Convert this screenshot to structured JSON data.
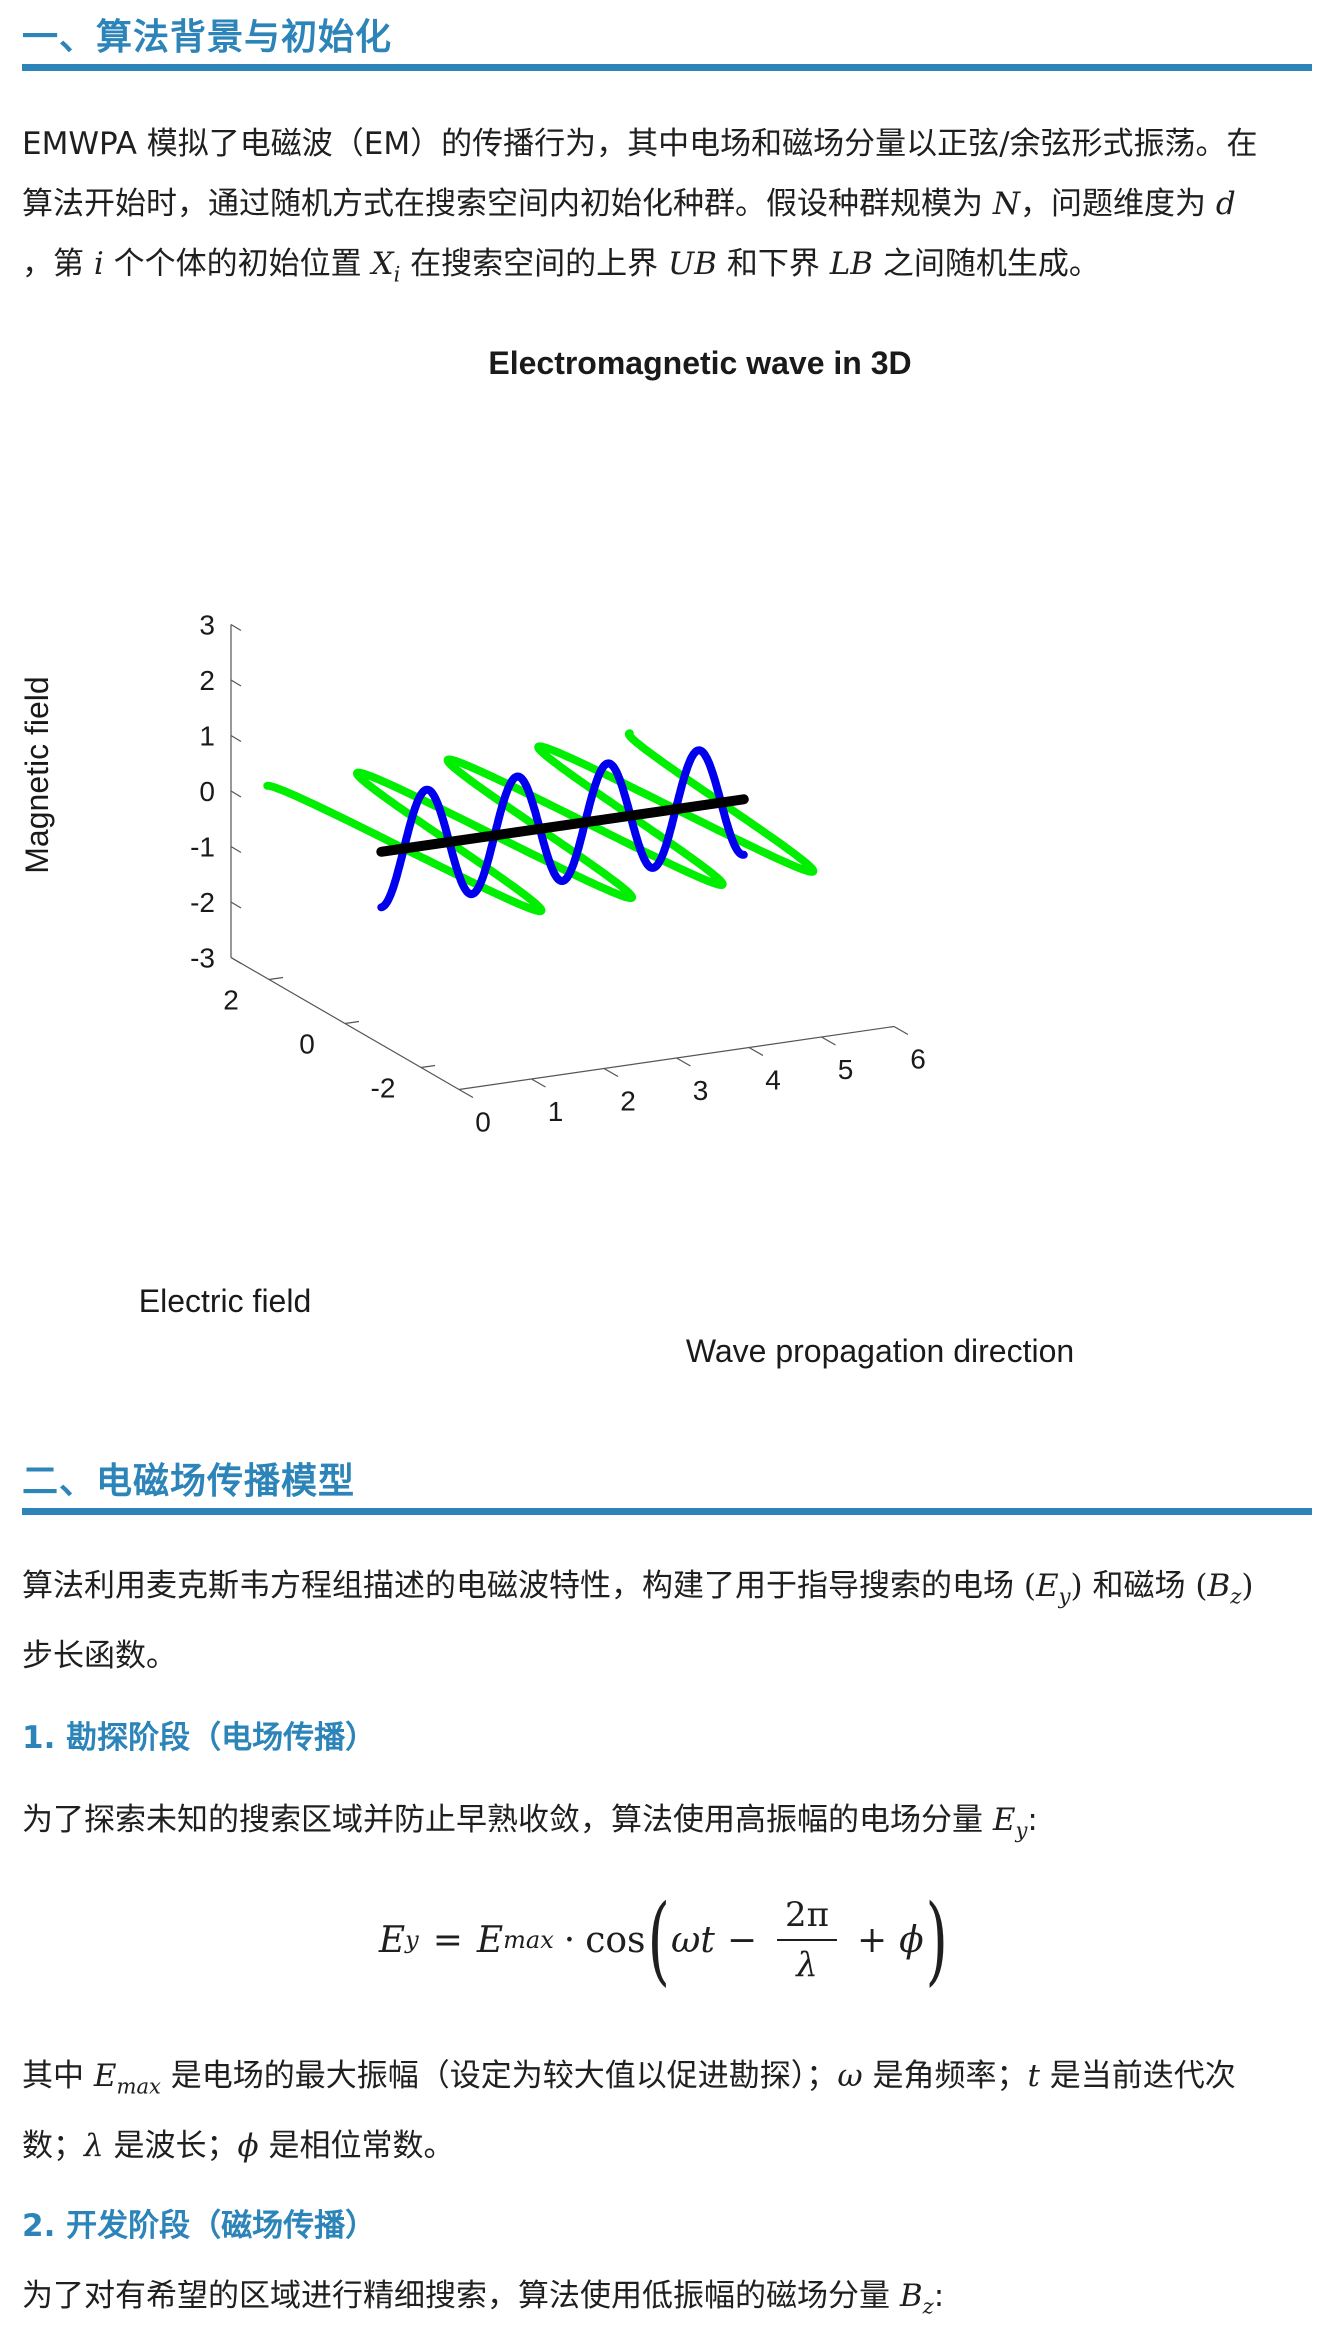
{
  "sections": {
    "s1": {
      "title": "一、算法背景与初始化",
      "para": {
        "line1": "EMWPA 模拟了电磁波（EM）的传播行为，其中电场和磁场分量以正弦/余弦形式振荡。在",
        "line2_a": "算法开始时，通过随机方式在搜索空间内初始化种群。假设种群规模为 ",
        "sym_N": "N",
        "line2_b": "，问题维度为 ",
        "sym_d": "d",
        "line3_a": "，第 ",
        "sym_i": "i",
        "line3_b": " 个个体的初始位置 ",
        "sym_X": "X",
        "sym_X_sub": "i",
        "line3_c": " 在搜索空间的上界 ",
        "sym_UB": "UB",
        "line3_d": " 和下界 ",
        "sym_LB": "LB",
        "line3_e": " 之间随机生成。"
      }
    },
    "s2": {
      "title": "二、电磁场传播模型",
      "para": {
        "line1_a": "算法利用麦克斯韦方程组描述的电磁波特性，构建了用于指导搜索的电场 ",
        "sym_Ey_open": "(",
        "sym_E": "E",
        "sym_Ey_sub": "y",
        "sym_Ey_close": ")",
        "line1_b": " 和磁场 ",
        "sym_B": "B",
        "sym_Bz_sub": "z",
        "line2": "步长函数。"
      },
      "sub1": {
        "title": "1. 勘探阶段（电场传播）",
        "intro_a": "为了探索未知的搜索区域并防止早熟收敛，算法使用高振幅的电场分量 ",
        "intro_sym": "E",
        "intro_sub": "y",
        "intro_colon": ":",
        "formula": {
          "lhs": "E",
          "lhs_sub": "y",
          "eq": "=",
          "emax": "E",
          "emax_sub": "max",
          "dot": "·",
          "cos": "cos",
          "lp": "(",
          "omega_t": "ωt",
          "minus": "−",
          "num": "2π",
          "den": "λ",
          "plus": "+",
          "phi": "ϕ",
          "rp": ")"
        },
        "desc": {
          "a": "其中 ",
          "emax": "E",
          "emax_sub": "max",
          "b": " 是电场的最大振幅（设定为较大值以促进勘探）；",
          "omega": "ω",
          "c": " 是角频率；",
          "t": "t",
          "d": " 是当前迭代次",
          "e": "数；",
          "lambda": "λ",
          "f": " 是波长；",
          "phi": "ϕ",
          "g": " 是相位常数。"
        }
      },
      "sub2": {
        "title": "2. 开发阶段（磁场传播）",
        "intro_a": "为了对有希望的区域进行精细搜索，算法使用低振幅的磁场分量 ",
        "intro_sym": "B",
        "intro_sub": "z",
        "intro_colon": ":"
      }
    }
  },
  "chart_data": {
    "type": "line3d",
    "title": "Electromagnetic wave in 3D",
    "xlabel": "Wave propagation direction",
    "ylabel": "Electric field",
    "zlabel": "Magnetic field",
    "xlim": [
      0,
      6
    ],
    "ylim": [
      -3,
      3
    ],
    "zlim": [
      -3,
      3
    ],
    "x_ticks": [
      "0",
      "1",
      "2",
      "3",
      "4",
      "5",
      "6"
    ],
    "y_ticks": [
      "-2",
      "0",
      "2"
    ],
    "z_ticks": [
      "3",
      "2",
      "1",
      "0",
      "-1",
      "-2",
      "-3"
    ],
    "x_range": [
      0.5,
      5.5
    ],
    "series": [
      {
        "component": "electric",
        "color": "#00ee00",
        "amplitude": 3,
        "cycles": 4
      },
      {
        "component": "magnetic",
        "color": "#0000ee",
        "amplitude": 1,
        "cycles": 4
      },
      {
        "component": "axis",
        "color": "#000000"
      }
    ]
  }
}
